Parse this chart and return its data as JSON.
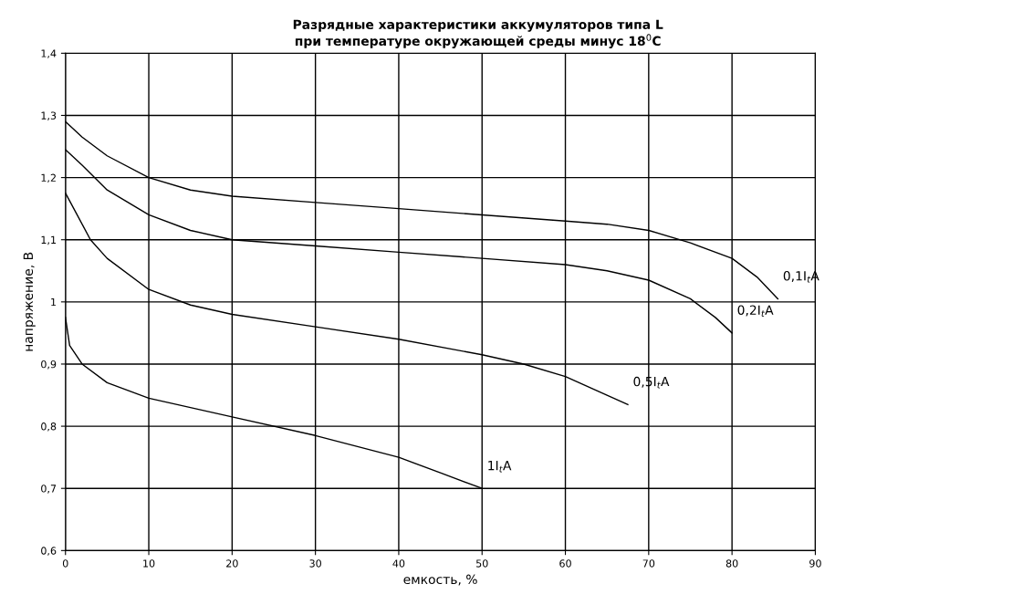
{
  "chart_data": {
    "type": "line",
    "title": "Разрядные характеристики аккумуляторов типа L\nпри температуре окружающей среды минус 18$^{0}$C",
    "xlabel": "емкость, %",
    "ylabel": "напряжение, В",
    "xlim": [
      0,
      90
    ],
    "xticks": [
      0,
      10,
      20,
      30,
      40,
      50,
      60,
      70,
      80,
      90
    ],
    "ylim": [
      0.6,
      1.4
    ],
    "yticks": [
      {
        "value": 0.6,
        "label": "0,6"
      },
      {
        "value": 0.7,
        "label": "0,7"
      },
      {
        "value": 0.8,
        "label": "0,8"
      },
      {
        "value": 0.9,
        "label": "0,9"
      },
      {
        "value": 1,
        "label": "1"
      },
      {
        "value": 1.1,
        "label": "1,1"
      },
      {
        "value": 1.2,
        "label": "1,2"
      },
      {
        "value": 1.3,
        "label": "1,3"
      },
      {
        "value": 1.4,
        "label": "1,4"
      }
    ],
    "grid": true,
    "legend": false,
    "marker": "none",
    "line_style": "solid",
    "series": [
      {
        "name": "0,1I$_{t}$A",
        "color": "#000000",
        "x": [
          0,
          2,
          5,
          10,
          15,
          20,
          30,
          40,
          50,
          60,
          65,
          70,
          75,
          80,
          83,
          85.5
        ],
        "values": [
          1.29,
          1.265,
          1.235,
          1.2,
          1.18,
          1.17,
          1.16,
          1.15,
          1.14,
          1.13,
          1.125,
          1.115,
          1.095,
          1.07,
          1.04,
          1.005
        ]
      },
      {
        "name": "0,2I$_{t}$A",
        "color": "#000000",
        "x": [
          0,
          2,
          5,
          10,
          15,
          20,
          30,
          40,
          50,
          60,
          65,
          70,
          75,
          78,
          80
        ],
        "values": [
          1.245,
          1.22,
          1.18,
          1.14,
          1.115,
          1.1,
          1.09,
          1.08,
          1.07,
          1.06,
          1.05,
          1.035,
          1.005,
          0.975,
          0.95
        ]
      },
      {
        "name": "0,5I$_{t}$A",
        "color": "#000000",
        "x": [
          0,
          1,
          3,
          5,
          10,
          15,
          20,
          30,
          40,
          50,
          55,
          60,
          65,
          67.5
        ],
        "values": [
          1.175,
          1.15,
          1.1,
          1.07,
          1.02,
          0.995,
          0.98,
          0.96,
          0.94,
          0.915,
          0.9,
          0.88,
          0.85,
          0.835
        ]
      },
      {
        "name": "1I$_{t}$A",
        "color": "#000000",
        "x": [
          0,
          0.5,
          2,
          5,
          10,
          20,
          30,
          40,
          45,
          50
        ],
        "values": [
          0.975,
          0.93,
          0.9,
          0.87,
          0.845,
          0.815,
          0.785,
          0.75,
          0.725,
          0.7
        ]
      }
    ]
  }
}
